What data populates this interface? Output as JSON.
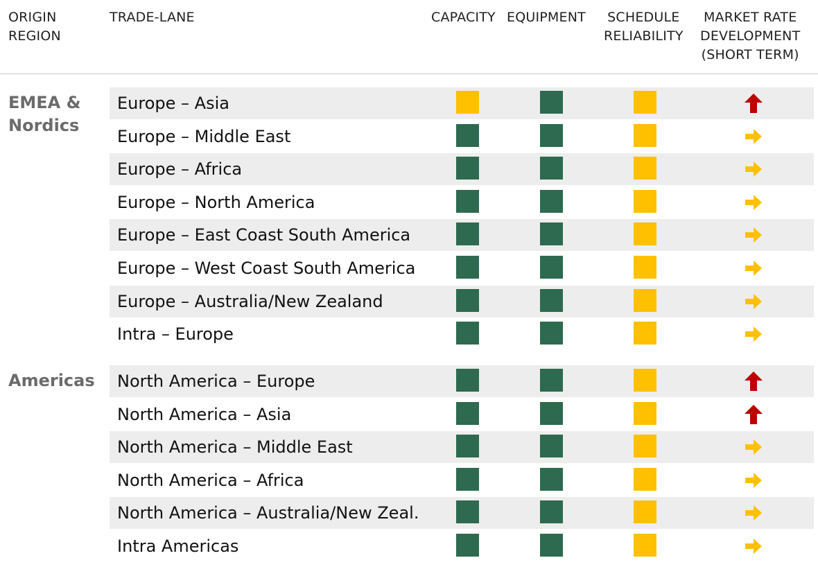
{
  "columns": {
    "origin_region": [
      "ORIGIN",
      "REGION"
    ],
    "trade_lane": "TRADE-LANE",
    "capacity": "CAPACITY",
    "equipment": "EQUIPMENT",
    "schedule_reliability": [
      "SCHEDULE",
      "RELIABILITY"
    ],
    "market_rate": [
      "MARKET RATE",
      "DEVELOPMENT",
      "(SHORT TERM)"
    ]
  },
  "colors": {
    "green": "#2d6a4f",
    "yellow": "#ffc000",
    "up_arrow": "#c00000",
    "right_arrow": "#ffc000",
    "row_shade": "#ededed"
  },
  "groups": [
    {
      "region": [
        "EMEA &",
        "Nordics"
      ],
      "lanes": [
        {
          "name": "Europe – Asia",
          "capacity": "yellow",
          "equipment": "green",
          "schedule": "yellow",
          "market_rate": "up-arrow-icon"
        },
        {
          "name": "Europe – Middle East",
          "capacity": "green",
          "equipment": "green",
          "schedule": "yellow",
          "market_rate": "right-arrow-icon"
        },
        {
          "name": "Europe – Africa",
          "capacity": "green",
          "equipment": "green",
          "schedule": "yellow",
          "market_rate": "right-arrow-icon"
        },
        {
          "name": "Europe – North America",
          "capacity": "green",
          "equipment": "green",
          "schedule": "yellow",
          "market_rate": "right-arrow-icon"
        },
        {
          "name": "Europe – East Coast South America",
          "capacity": "green",
          "equipment": "green",
          "schedule": "yellow",
          "market_rate": "right-arrow-icon"
        },
        {
          "name": "Europe – West Coast South America",
          "capacity": "green",
          "equipment": "green",
          "schedule": "yellow",
          "market_rate": "right-arrow-icon"
        },
        {
          "name": "Europe – Australia/New Zealand",
          "capacity": "green",
          "equipment": "green",
          "schedule": "yellow",
          "market_rate": "right-arrow-icon"
        },
        {
          "name": "Intra – Europe",
          "capacity": "green",
          "equipment": "green",
          "schedule": "yellow",
          "market_rate": "right-arrow-icon"
        }
      ]
    },
    {
      "region": [
        "Americas"
      ],
      "lanes": [
        {
          "name": "North America – Europe",
          "capacity": "green",
          "equipment": "green",
          "schedule": "yellow",
          "market_rate": "up-arrow-icon"
        },
        {
          "name": "North America – Asia",
          "capacity": "green",
          "equipment": "green",
          "schedule": "yellow",
          "market_rate": "up-arrow-icon"
        },
        {
          "name": "North America – Middle East",
          "capacity": "green",
          "equipment": "green",
          "schedule": "yellow",
          "market_rate": "right-arrow-icon"
        },
        {
          "name": "North America – Africa",
          "capacity": "green",
          "equipment": "green",
          "schedule": "yellow",
          "market_rate": "right-arrow-icon"
        },
        {
          "name": "North America – Australia/New Zeal.",
          "capacity": "green",
          "equipment": "green",
          "schedule": "yellow",
          "market_rate": "right-arrow-icon"
        },
        {
          "name": "Intra Americas",
          "capacity": "green",
          "equipment": "green",
          "schedule": "yellow",
          "market_rate": "right-arrow-icon"
        }
      ]
    }
  ]
}
